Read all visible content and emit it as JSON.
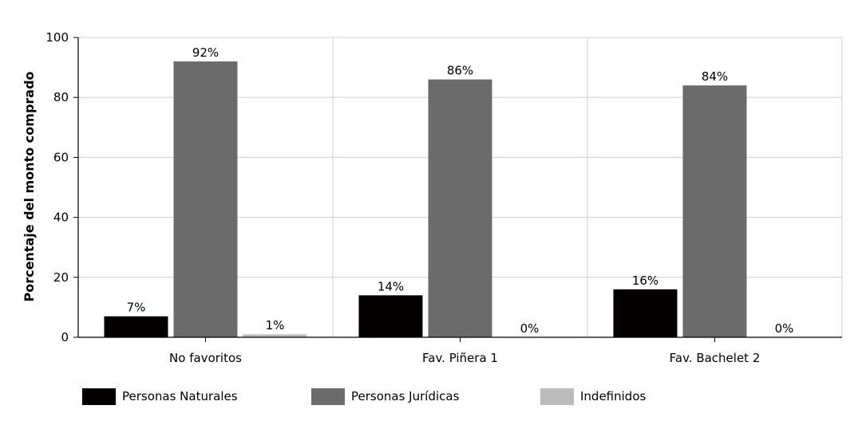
{
  "chart_data": {
    "type": "bar",
    "categories": [
      "No favoritos",
      "Fav. Piñera 1",
      "Fav. Bachelet 2"
    ],
    "series": [
      {
        "name": "Personas Naturales",
        "color": "#050000",
        "values": [
          7,
          14,
          16
        ],
        "labels": [
          "7%",
          "14%",
          "16%"
        ]
      },
      {
        "name": "Personas Jurídicas",
        "color": "#6b6b6b",
        "values": [
          92,
          86,
          84
        ],
        "labels": [
          "92%",
          "86%",
          "84%"
        ]
      },
      {
        "name": "Indefinidos",
        "color": "#bcbcbc",
        "values": [
          1,
          0,
          0
        ],
        "labels": [
          "1%",
          "0%",
          "0%"
        ]
      }
    ],
    "ylabel": "Porcentaje del monto comprado",
    "xlabel": "",
    "ylim": [
      0,
      100
    ],
    "yticks": [
      0,
      20,
      40,
      60,
      80,
      100
    ],
    "grid": true,
    "legend_position": "bottom"
  }
}
